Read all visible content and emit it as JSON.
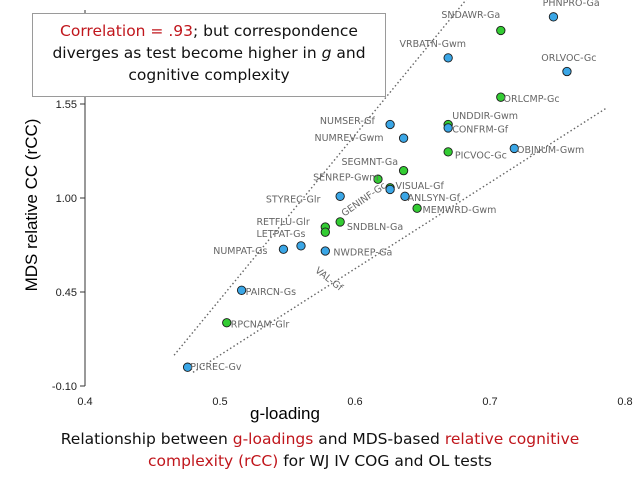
{
  "annotation": {
    "part1": "Correlation = .93",
    "part2": "; but correspondence diverges as test become higher in ",
    "part3": "g",
    "part4": " and cognitive complexity"
  },
  "caption": {
    "p1": "Relationship between ",
    "p2": "g-loadings",
    "p3": " and MDS-based ",
    "p4": "relative cognitive complexity (rCC)",
    "p5": " for WJ IV COG and OL tests"
  },
  "colors": {
    "accent_red": "#c0161c",
    "blue_point": "#3aa6e6",
    "green_point": "#33cc33"
  },
  "chart_data": {
    "type": "scatter",
    "xlabel": "g-loading",
    "ylabel": "MDS relative CC (rCC)",
    "xlim": [
      0.4,
      0.8
    ],
    "ylim": [
      -0.1,
      2.1
    ],
    "x_ticks": [
      "0.4",
      "0.5",
      "0.6",
      "0.7",
      "0.8"
    ],
    "y_ticks": [
      "-0.10",
      "0.45",
      "1.00",
      "1.55"
    ],
    "y_tick_values": [
      -0.1,
      0.45,
      1.0,
      1.55
    ],
    "grid": false,
    "points": [
      {
        "label": "PHNPRO-Ga",
        "x": 0.747,
        "y": 2.06,
        "color": "blue"
      },
      {
        "label": "SNDAWR-Ga",
        "x": 0.708,
        "y": 1.98,
        "color": "green"
      },
      {
        "label": "VRBATN-Gwm",
        "x": 0.669,
        "y": 1.82,
        "color": "blue"
      },
      {
        "label": "ORLVOC-Gc",
        "x": 0.757,
        "y": 1.74,
        "color": "blue"
      },
      {
        "label": "ORLCMP-Gc",
        "x": 0.708,
        "y": 1.59,
        "color": "green"
      },
      {
        "label": "NUMSER-Gf",
        "x": 0.626,
        "y": 1.43,
        "color": "blue"
      },
      {
        "label": "UNDDIR-Gwm",
        "x": 0.669,
        "y": 1.43,
        "color": "green"
      },
      {
        "label": "CONFRM-Gf",
        "x": 0.669,
        "y": 1.41,
        "color": "blue"
      },
      {
        "label": "NUMREV-Gwm",
        "x": 0.636,
        "y": 1.35,
        "color": "blue"
      },
      {
        "label": "OBJNUM-Gwm",
        "x": 0.718,
        "y": 1.29,
        "color": "blue"
      },
      {
        "label": "PICVOC-Gc",
        "x": 0.669,
        "y": 1.27,
        "color": "green"
      },
      {
        "label": "SEGMNT-Ga",
        "x": 0.636,
        "y": 1.16,
        "color": "green"
      },
      {
        "label": "SENREP-Gwm",
        "x": 0.617,
        "y": 1.11,
        "color": "green"
      },
      {
        "label": "VISUAL-Gf",
        "x": 0.626,
        "y": 1.06,
        "color": "green"
      },
      {
        "label": "ANLSYN-Gf",
        "x": 0.626,
        "y": 1.05,
        "color": "blue"
      },
      {
        "label": "STYREC-Glr",
        "x": 0.589,
        "y": 1.01,
        "color": "blue"
      },
      {
        "label": "ANLSYN-Gf-pt2",
        "x": 0.637,
        "y": 1.01,
        "color": "blue"
      },
      {
        "label": "MEMWRD-Gwm",
        "x": 0.646,
        "y": 0.94,
        "color": "green"
      },
      {
        "label": "SNDBLN-Ga",
        "x": 0.589,
        "y": 0.86,
        "color": "green"
      },
      {
        "label": "RETFLU-Glr",
        "x": 0.578,
        "y": 0.83,
        "color": "green"
      },
      {
        "label": "LETPAT-Gs",
        "x": 0.578,
        "y": 0.8,
        "color": "green"
      },
      {
        "label": "NUMPAT-Gs",
        "x": 0.547,
        "y": 0.7,
        "color": "blue"
      },
      {
        "label": "NUMPAT-Gs-pt2",
        "x": 0.56,
        "y": 0.72,
        "color": "blue"
      },
      {
        "label": "NWDREP-Ga",
        "x": 0.578,
        "y": 0.69,
        "color": "blue"
      },
      {
        "label": "PAIRCN-Gs",
        "x": 0.516,
        "y": 0.46,
        "color": "blue"
      },
      {
        "label": "RPCNAM-Glr",
        "x": 0.505,
        "y": 0.27,
        "color": "green"
      },
      {
        "label": "PICREC-Gv",
        "x": 0.476,
        "y": 0.01,
        "color": "blue"
      }
    ],
    "visible_point_labels": [
      {
        "text": "PHNPRO-Ga",
        "x": 0.739,
        "y": 2.14
      },
      {
        "text": "SNDAWR-Ga",
        "x": 0.664,
        "y": 2.07
      },
      {
        "text": "VRBATN-Gwm",
        "x": 0.633,
        "y": 1.9
      },
      {
        "text": "ORLVOC-Gc",
        "x": 0.738,
        "y": 1.82
      },
      {
        "text": "ORLCMP-Gc",
        "x": 0.71,
        "y": 1.58
      },
      {
        "text": "NUMSER-Gf",
        "x": 0.574,
        "y": 1.45
      },
      {
        "text": "UNDDIR-Gwm",
        "x": 0.672,
        "y": 1.48
      },
      {
        "text": "CONFRM-Gf",
        "x": 0.672,
        "y": 1.4
      },
      {
        "text": "NUMREV-Gwm",
        "x": 0.57,
        "y": 1.35
      },
      {
        "text": "OBJNUM-Gwm",
        "x": 0.72,
        "y": 1.28
      },
      {
        "text": "PICVOC-Gc",
        "x": 0.674,
        "y": 1.25
      },
      {
        "text": "SEGMNT-Ga",
        "x": 0.59,
        "y": 1.21
      },
      {
        "text": "SENREP-Gwm",
        "x": 0.569,
        "y": 1.12
      },
      {
        "text": "VISUAL-Gf",
        "x": 0.63,
        "y": 1.07
      },
      {
        "text": "ANLSYN-Gf",
        "x": 0.639,
        "y": 1.0
      },
      {
        "text": "STYREC-Glr",
        "x": 0.534,
        "y": 0.99
      },
      {
        "text": "MEMWRD-Gwm",
        "x": 0.65,
        "y": 0.93
      },
      {
        "text": "SNDBLN-Ga",
        "x": 0.594,
        "y": 0.83
      },
      {
        "text": "RETFLU-Glr",
        "x": 0.527,
        "y": 0.86
      },
      {
        "text": "LETPAT-Gs",
        "x": 0.527,
        "y": 0.79
      },
      {
        "text": "NUMPAT-Gs",
        "x": 0.495,
        "y": 0.69
      },
      {
        "text": "NWDREP-Ga",
        "x": 0.584,
        "y": 0.68
      },
      {
        "text": "PAIRCN-Gs",
        "x": 0.519,
        "y": 0.45
      },
      {
        "text": "RPCNAM-Glr",
        "x": 0.508,
        "y": 0.26
      },
      {
        "text": "PICREC-Gv",
        "x": 0.478,
        "y": 0.01
      }
    ],
    "curve_labels": [
      {
        "text": "GENINF-Gc",
        "x": 0.592,
        "y": 0.89,
        "angle": -35
      },
      {
        "text": "VAL-Gf",
        "x": 0.57,
        "y": 0.57,
        "angle": 38
      }
    ],
    "reference_lines": [
      {
        "style": "dotted",
        "x1": 0.466,
        "y1": 0.08,
        "x2": 0.7,
        "y2": 2.33
      },
      {
        "style": "dotted",
        "x1": 0.48,
        "y1": -0.02,
        "x2": 0.787,
        "y2": 1.53
      }
    ]
  }
}
